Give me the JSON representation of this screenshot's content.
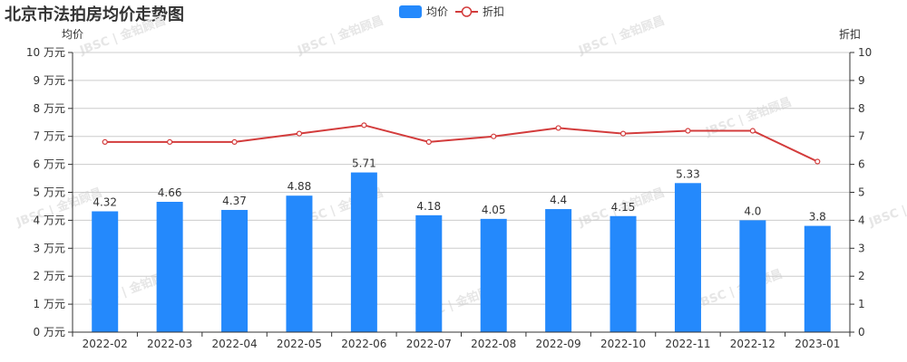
{
  "title": "北京市法拍房均价走势图",
  "legend": [
    {
      "label": "均价",
      "type": "bar",
      "color": "#2489fc"
    },
    {
      "label": "折扣",
      "type": "line",
      "color": "#d33c3c"
    }
  ],
  "watermark": "JBSC | 金铂顾昌",
  "chart_data": {
    "type": "bar+line",
    "title": "北京市法拍房均价走势图",
    "categories": [
      "2022-02",
      "2022-03",
      "2022-04",
      "2022-05",
      "2022-06",
      "2022-07",
      "2022-08",
      "2022-09",
      "2022-10",
      "2022-11",
      "2022-12",
      "2023-01"
    ],
    "series": [
      {
        "name": "均价",
        "type": "bar",
        "axis": "left",
        "color": "#2489fc",
        "values": [
          4.32,
          4.66,
          4.37,
          4.88,
          5.71,
          4.18,
          4.05,
          4.4,
          4.15,
          5.33,
          4.0,
          3.8
        ],
        "labels": [
          "4.32",
          "4.66",
          "4.37",
          "4.88",
          "5.71",
          "4.18",
          "4.05",
          "4.4",
          "4.15",
          "5.33",
          "4.0",
          "3.8"
        ]
      },
      {
        "name": "折扣",
        "type": "line",
        "axis": "right",
        "color": "#d33c3c",
        "values": [
          6.8,
          6.8,
          6.8,
          7.1,
          7.4,
          6.8,
          7.0,
          7.3,
          7.1,
          7.2,
          7.2,
          6.1
        ]
      }
    ],
    "y_left": {
      "label": "均价",
      "min": 0,
      "max": 10,
      "ticks": [
        "0 万元",
        "1 万元",
        "2 万元",
        "3 万元",
        "4 万元",
        "5 万元",
        "6 万元",
        "7 万元",
        "8 万元",
        "9 万元",
        "10 万元"
      ]
    },
    "y_right": {
      "label": "折扣",
      "min": 0,
      "max": 10,
      "ticks": [
        "0",
        "1",
        "2",
        "3",
        "4",
        "5",
        "6",
        "7",
        "8",
        "9",
        "10"
      ]
    },
    "xlabel": "",
    "grid": true,
    "legend_position": "top-center"
  }
}
